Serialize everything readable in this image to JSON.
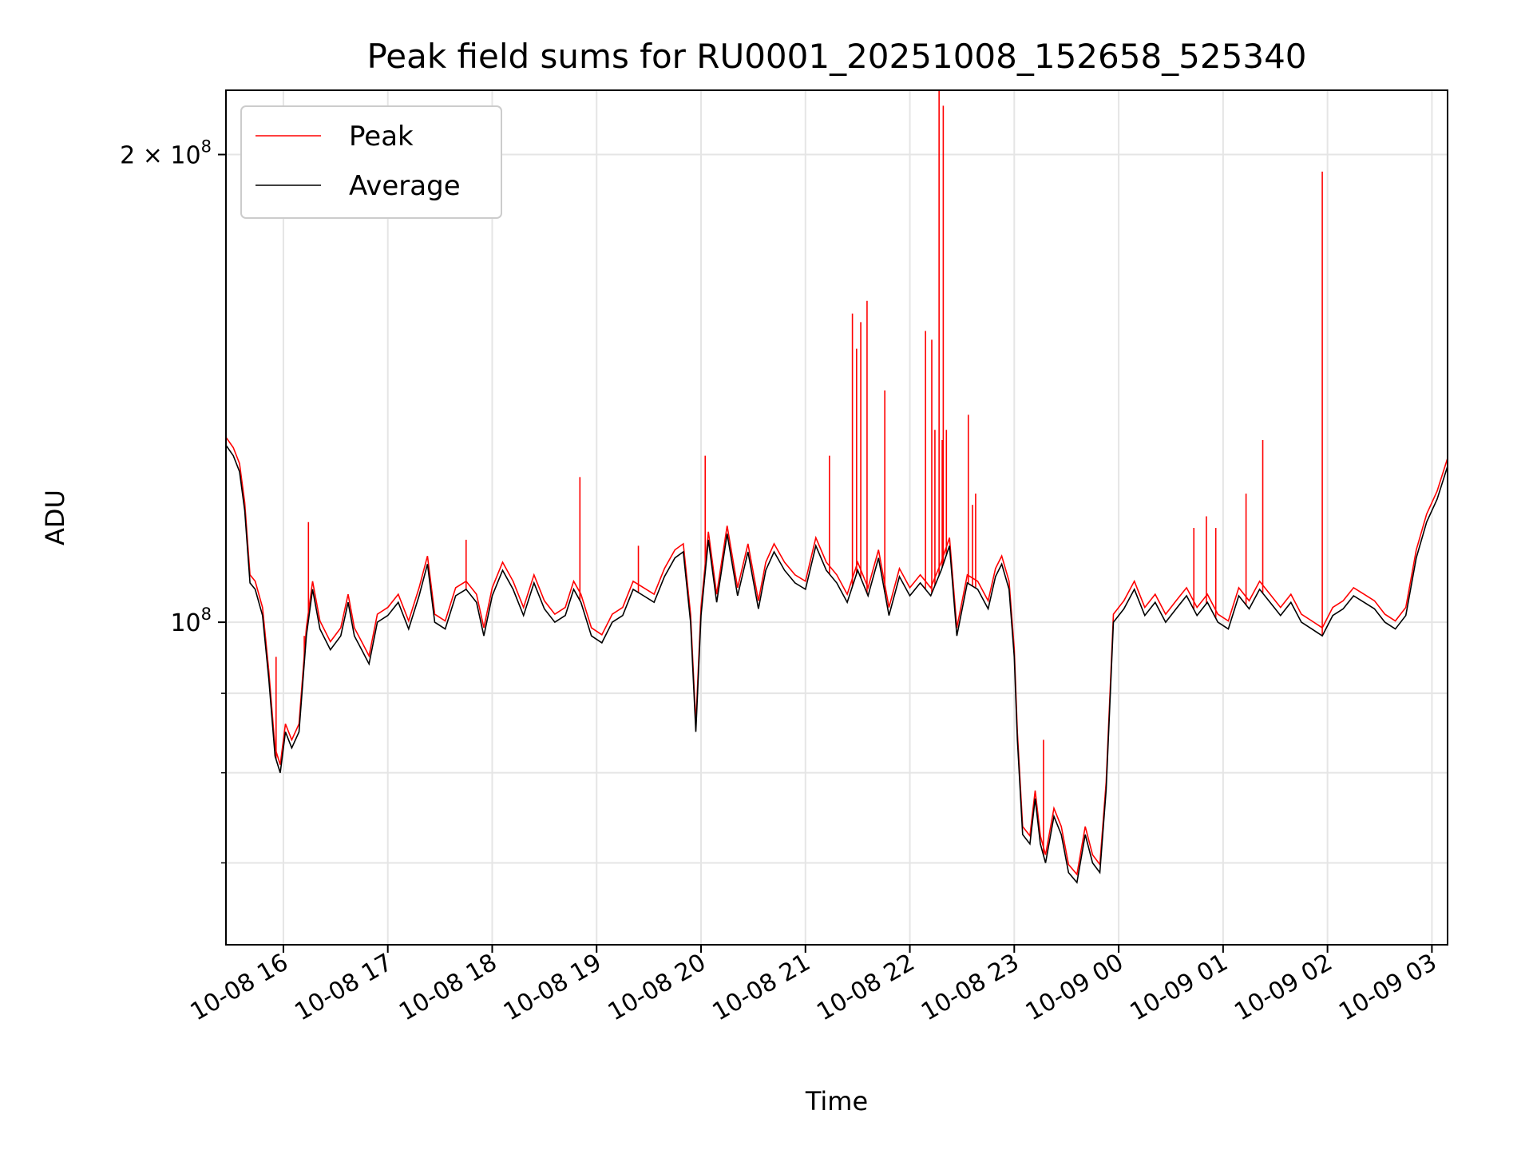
{
  "chart_data": {
    "type": "line",
    "title": "Peak field sums for RU0001_20251008_152658_525340",
    "xlabel": "Time",
    "ylabel": "ADU",
    "yscale": "log",
    "ylim": [
      62000000,
      220000000
    ],
    "xlim": [
      15.45,
      27.15
    ],
    "grid": true,
    "legend_position": "top-left",
    "x_ticks": [
      {
        "value": 16,
        "label": "10-08 16"
      },
      {
        "value": 17,
        "label": "10-08 17"
      },
      {
        "value": 18,
        "label": "10-08 18"
      },
      {
        "value": 19,
        "label": "10-08 19"
      },
      {
        "value": 20,
        "label": "10-08 20"
      },
      {
        "value": 21,
        "label": "10-08 21"
      },
      {
        "value": 22,
        "label": "10-08 22"
      },
      {
        "value": 23,
        "label": "10-08 23"
      },
      {
        "value": 24,
        "label": "10-09 00"
      },
      {
        "value": 25,
        "label": "10-09 01"
      },
      {
        "value": 26,
        "label": "10-09 02"
      },
      {
        "value": 27,
        "label": "10-09 03"
      }
    ],
    "y_major_ticks": [
      {
        "value": 100000000,
        "base": "10",
        "exp": "8",
        "coef": ""
      },
      {
        "value": 200000000,
        "base": "10",
        "exp": "8",
        "coef": "2 × "
      }
    ],
    "y_minor_ticks": [
      70000000,
      80000000,
      90000000
    ],
    "series": [
      {
        "name": "Peak",
        "color": "#ff0000",
        "spikes": [
          {
            "x": 15.93,
            "y": 95000000
          },
          {
            "x": 16.24,
            "y": 116000000
          },
          {
            "x": 16.2,
            "y": 98000000
          },
          {
            "x": 17.75,
            "y": 113000000
          },
          {
            "x": 18.84,
            "y": 124000000
          },
          {
            "x": 19.4,
            "y": 112000000
          },
          {
            "x": 20.04,
            "y": 128000000
          },
          {
            "x": 21.23,
            "y": 128000000
          },
          {
            "x": 21.45,
            "y": 158000000
          },
          {
            "x": 21.49,
            "y": 150000000
          },
          {
            "x": 21.53,
            "y": 156000000
          },
          {
            "x": 21.59,
            "y": 161000000
          },
          {
            "x": 21.76,
            "y": 141000000
          },
          {
            "x": 22.15,
            "y": 154000000
          },
          {
            "x": 22.21,
            "y": 152000000
          },
          {
            "x": 22.24,
            "y": 133000000
          },
          {
            "x": 22.28,
            "y": 220000000
          },
          {
            "x": 22.32,
            "y": 215000000
          },
          {
            "x": 22.31,
            "y": 131000000
          },
          {
            "x": 22.35,
            "y": 133000000
          },
          {
            "x": 22.56,
            "y": 136000000
          },
          {
            "x": 22.6,
            "y": 119000000
          },
          {
            "x": 22.63,
            "y": 121000000
          },
          {
            "x": 23.28,
            "y": 84000000
          },
          {
            "x": 24.72,
            "y": 115000000
          },
          {
            "x": 24.84,
            "y": 117000000
          },
          {
            "x": 24.93,
            "y": 115000000
          },
          {
            "x": 25.22,
            "y": 121000000
          },
          {
            "x": 25.38,
            "y": 131000000
          },
          {
            "x": 25.95,
            "y": 195000000
          }
        ]
      },
      {
        "name": "Average",
        "color": "#000000",
        "points": [
          [
            15.45,
            130000000
          ],
          [
            15.52,
            128000000
          ],
          [
            15.58,
            125000000
          ],
          [
            15.63,
            118000000
          ],
          [
            15.68,
            106000000
          ],
          [
            15.73,
            105000000
          ],
          [
            15.8,
            101000000
          ],
          [
            15.86,
            92000000
          ],
          [
            15.92,
            82000000
          ],
          [
            15.97,
            80000000
          ],
          [
            16.02,
            85000000
          ],
          [
            16.08,
            83000000
          ],
          [
            16.15,
            85000000
          ],
          [
            16.22,
            98000000
          ],
          [
            16.28,
            105000000
          ],
          [
            16.35,
            99000000
          ],
          [
            16.45,
            96000000
          ],
          [
            16.55,
            98000000
          ],
          [
            16.62,
            103000000
          ],
          [
            16.68,
            98000000
          ],
          [
            16.75,
            96000000
          ],
          [
            16.82,
            94000000
          ],
          [
            16.9,
            100000000
          ],
          [
            17.0,
            101000000
          ],
          [
            17.1,
            103000000
          ],
          [
            17.2,
            99000000
          ],
          [
            17.3,
            104000000
          ],
          [
            17.38,
            109000000
          ],
          [
            17.45,
            100000000
          ],
          [
            17.55,
            99000000
          ],
          [
            17.65,
            104000000
          ],
          [
            17.75,
            105000000
          ],
          [
            17.85,
            103000000
          ],
          [
            17.92,
            98000000
          ],
          [
            18.0,
            104000000
          ],
          [
            18.1,
            108000000
          ],
          [
            18.2,
            105000000
          ],
          [
            18.3,
            101000000
          ],
          [
            18.4,
            106000000
          ],
          [
            18.5,
            102000000
          ],
          [
            18.6,
            100000000
          ],
          [
            18.7,
            101000000
          ],
          [
            18.78,
            105000000
          ],
          [
            18.85,
            103000000
          ],
          [
            18.95,
            98000000
          ],
          [
            19.05,
            97000000
          ],
          [
            19.15,
            100000000
          ],
          [
            19.25,
            101000000
          ],
          [
            19.35,
            105000000
          ],
          [
            19.45,
            104000000
          ],
          [
            19.55,
            103000000
          ],
          [
            19.65,
            107000000
          ],
          [
            19.75,
            110000000
          ],
          [
            19.83,
            111000000
          ],
          [
            19.9,
            100000000
          ],
          [
            19.95,
            85000000
          ],
          [
            20.0,
            101000000
          ],
          [
            20.07,
            113000000
          ],
          [
            20.15,
            103000000
          ],
          [
            20.25,
            114000000
          ],
          [
            20.35,
            104000000
          ],
          [
            20.45,
            111000000
          ],
          [
            20.55,
            102000000
          ],
          [
            20.62,
            108000000
          ],
          [
            20.7,
            111000000
          ],
          [
            20.8,
            108000000
          ],
          [
            20.9,
            106000000
          ],
          [
            21.0,
            105000000
          ],
          [
            21.1,
            112000000
          ],
          [
            21.2,
            108000000
          ],
          [
            21.3,
            106000000
          ],
          [
            21.4,
            103000000
          ],
          [
            21.5,
            108000000
          ],
          [
            21.6,
            104000000
          ],
          [
            21.7,
            110000000
          ],
          [
            21.8,
            101000000
          ],
          [
            21.9,
            107000000
          ],
          [
            22.0,
            104000000
          ],
          [
            22.1,
            106000000
          ],
          [
            22.2,
            104000000
          ],
          [
            22.3,
            108000000
          ],
          [
            22.38,
            112000000
          ],
          [
            22.45,
            98000000
          ],
          [
            22.55,
            106000000
          ],
          [
            22.65,
            105000000
          ],
          [
            22.75,
            102000000
          ],
          [
            22.82,
            107000000
          ],
          [
            22.88,
            109000000
          ],
          [
            22.95,
            105000000
          ],
          [
            23.0,
            95000000
          ],
          [
            23.03,
            84000000
          ],
          [
            23.08,
            73000000
          ],
          [
            23.15,
            72000000
          ],
          [
            23.2,
            77000000
          ],
          [
            23.25,
            72000000
          ],
          [
            23.3,
            70000000
          ],
          [
            23.38,
            75000000
          ],
          [
            23.45,
            73000000
          ],
          [
            23.52,
            69000000
          ],
          [
            23.6,
            68000000
          ],
          [
            23.68,
            73000000
          ],
          [
            23.75,
            70000000
          ],
          [
            23.82,
            69000000
          ],
          [
            23.88,
            78000000
          ],
          [
            23.95,
            100000000
          ],
          [
            24.05,
            102000000
          ],
          [
            24.15,
            105000000
          ],
          [
            24.25,
            101000000
          ],
          [
            24.35,
            103000000
          ],
          [
            24.45,
            100000000
          ],
          [
            24.55,
            102000000
          ],
          [
            24.65,
            104000000
          ],
          [
            24.75,
            101000000
          ],
          [
            24.85,
            103000000
          ],
          [
            24.95,
            100000000
          ],
          [
            25.05,
            99000000
          ],
          [
            25.15,
            104000000
          ],
          [
            25.25,
            102000000
          ],
          [
            25.35,
            105000000
          ],
          [
            25.45,
            103000000
          ],
          [
            25.55,
            101000000
          ],
          [
            25.65,
            103000000
          ],
          [
            25.75,
            100000000
          ],
          [
            25.85,
            99000000
          ],
          [
            25.95,
            98000000
          ],
          [
            26.05,
            101000000
          ],
          [
            26.15,
            102000000
          ],
          [
            26.25,
            104000000
          ],
          [
            26.35,
            103000000
          ],
          [
            26.45,
            102000000
          ],
          [
            26.55,
            100000000
          ],
          [
            26.65,
            99000000
          ],
          [
            26.75,
            101000000
          ],
          [
            26.85,
            110000000
          ],
          [
            26.95,
            116000000
          ],
          [
            27.05,
            120000000
          ],
          [
            27.15,
            126000000
          ]
        ]
      }
    ]
  }
}
